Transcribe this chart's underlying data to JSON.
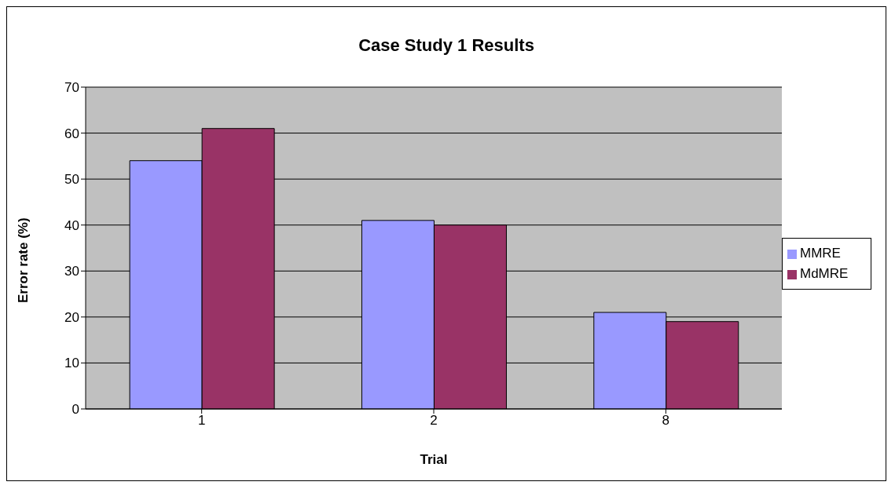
{
  "chart_data": {
    "type": "bar",
    "title": "Case Study 1 Results",
    "xlabel": "Trial",
    "ylabel": "Error rate (%)",
    "categories": [
      "1",
      "2",
      "8"
    ],
    "series": [
      {
        "name": "MMRE",
        "color": "#9999ff",
        "values": [
          54,
          41,
          21
        ]
      },
      {
        "name": "MdMRE",
        "color": "#993366",
        "values": [
          61,
          40,
          19
        ]
      }
    ],
    "ylim": [
      0,
      70
    ],
    "yticks": [
      0,
      10,
      20,
      30,
      40,
      50,
      60,
      70
    ],
    "grid": "y",
    "legend": "right"
  }
}
